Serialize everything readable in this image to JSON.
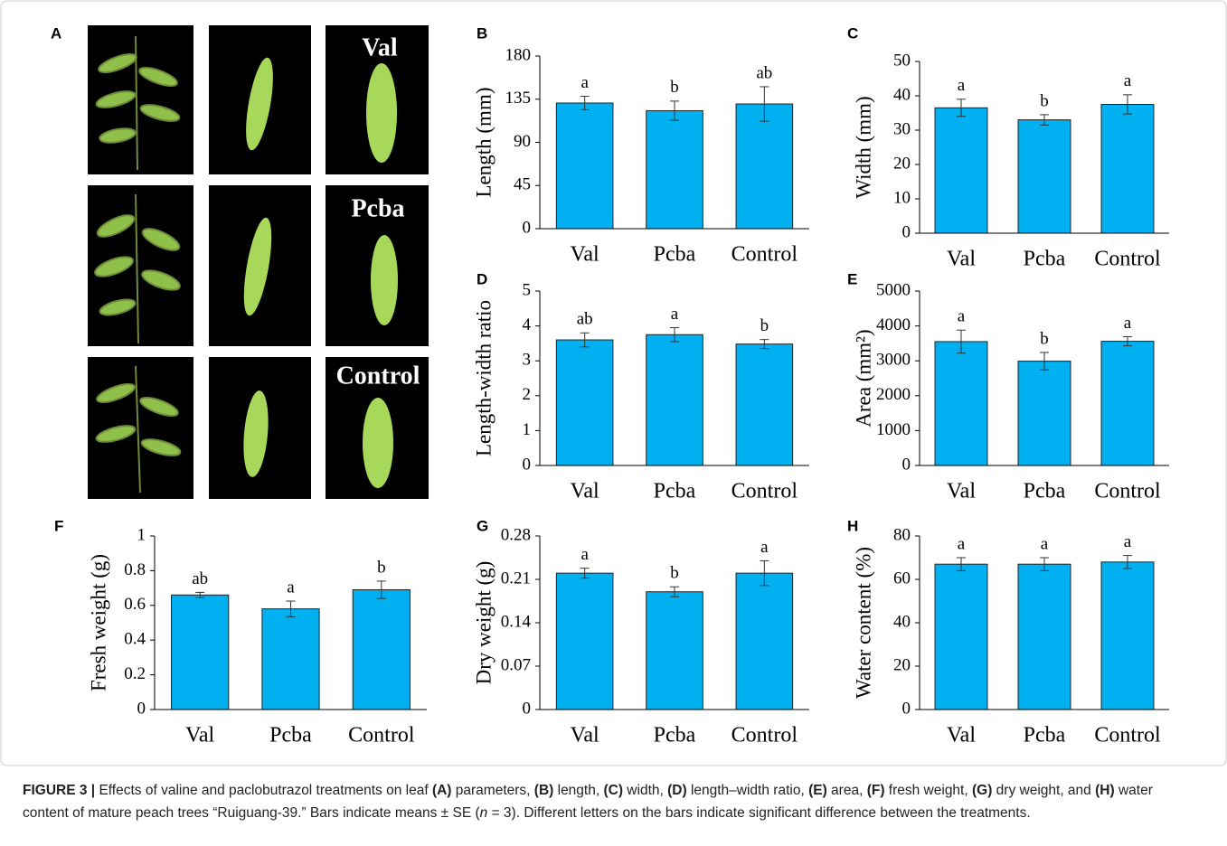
{
  "panel_a": {
    "label": "A",
    "treatments": [
      "Val",
      "Pcba",
      "Control"
    ]
  },
  "chart_data": [
    {
      "type": "bar",
      "panel": "B",
      "ylabel": "Length (mm)",
      "categories": [
        "Val",
        "Pcba",
        "Control"
      ],
      "values": [
        131,
        123,
        130
      ],
      "errors": [
        7,
        10,
        18
      ],
      "annotations": [
        "a",
        "b",
        "ab"
      ],
      "color": "#00b0f0",
      "ylim": [
        0,
        180
      ],
      "yticks": [
        0,
        45,
        90,
        135,
        180
      ]
    },
    {
      "type": "bar",
      "panel": "C",
      "ylabel": "Width (mm)",
      "categories": [
        "Val",
        "Pcba",
        "Control"
      ],
      "values": [
        36.5,
        33,
        37.5
      ],
      "errors": [
        2.5,
        1.5,
        2.8
      ],
      "annotations": [
        "a",
        "b",
        "a"
      ],
      "color": "#00b0f0",
      "ylim": [
        0,
        50
      ],
      "yticks": [
        0,
        10,
        20,
        30,
        40,
        50
      ]
    },
    {
      "type": "bar",
      "panel": "D",
      "ylabel": "Length-width ratio",
      "categories": [
        "Val",
        "Pcba",
        "Control"
      ],
      "values": [
        3.6,
        3.75,
        3.48
      ],
      "errors": [
        0.2,
        0.2,
        0.13
      ],
      "annotations": [
        "ab",
        "a",
        "b"
      ],
      "color": "#00b0f0",
      "ylim": [
        0,
        5
      ],
      "yticks": [
        0,
        1,
        2,
        3,
        4,
        5
      ]
    },
    {
      "type": "bar",
      "panel": "E",
      "ylabel": "Area (mm²)",
      "categories": [
        "Val",
        "Pcba",
        "Control"
      ],
      "values": [
        3550,
        2990,
        3560
      ],
      "errors": [
        330,
        250,
        130
      ],
      "annotations": [
        "a",
        "b",
        "a"
      ],
      "color": "#00b0f0",
      "ylim": [
        0,
        5000
      ],
      "yticks": [
        0,
        1000,
        2000,
        3000,
        4000,
        5000
      ]
    },
    {
      "type": "bar",
      "panel": "F",
      "ylabel": "Fresh weight (g)",
      "categories": [
        "Val",
        "Pcba",
        "Control"
      ],
      "values": [
        0.66,
        0.58,
        0.69
      ],
      "errors": [
        0.015,
        0.045,
        0.05
      ],
      "annotations": [
        "ab",
        "a",
        "b"
      ],
      "color": "#00b0f0",
      "ylim": [
        0,
        1
      ],
      "yticks": [
        0,
        0.2,
        0.4,
        0.6,
        0.8,
        1
      ]
    },
    {
      "type": "bar",
      "panel": "G",
      "ylabel": "Dry weight (g)",
      "categories": [
        "Val",
        "Pcba",
        "Control"
      ],
      "values": [
        0.22,
        0.19,
        0.22
      ],
      "errors": [
        0.008,
        0.008,
        0.02
      ],
      "annotations": [
        "a",
        "b",
        "a"
      ],
      "color": "#00b0f0",
      "ylim": [
        0,
        0.28
      ],
      "yticks": [
        0,
        0.07,
        0.14,
        0.21,
        0.28
      ]
    },
    {
      "type": "bar",
      "panel": "H",
      "ylabel": "Water content (%)",
      "categories": [
        "Val",
        "Pcba",
        "Control"
      ],
      "values": [
        67,
        67,
        68
      ],
      "errors": [
        3,
        3,
        3
      ],
      "annotations": [
        "a",
        "a",
        "a"
      ],
      "color": "#00b0f0",
      "ylim": [
        0,
        80
      ],
      "yticks": [
        0,
        20,
        40,
        60,
        80
      ]
    }
  ],
  "caption": [
    {
      "text": "FIGURE 3 |",
      "bold": true
    },
    {
      "text": " Effects of valine and paclobutrazol treatments on leaf "
    },
    {
      "text": "(A)",
      "bold": true
    },
    {
      "text": " parameters, "
    },
    {
      "text": "(B)",
      "bold": true
    },
    {
      "text": " length, "
    },
    {
      "text": "(C)",
      "bold": true
    },
    {
      "text": " width, "
    },
    {
      "text": "(D)",
      "bold": true
    },
    {
      "text": " length–width ratio, "
    },
    {
      "text": "(E)",
      "bold": true
    },
    {
      "text": " area, "
    },
    {
      "text": "(F)",
      "bold": true
    },
    {
      "text": " fresh weight, "
    },
    {
      "text": "(G)",
      "bold": true
    },
    {
      "text": " dry weight, and "
    },
    {
      "text": "(H)",
      "bold": true
    },
    {
      "text": " water content of mature peach trees “Ruiguang-39.” Bars indicate means ± SE ("
    },
    {
      "text": "n",
      "italic": true
    },
    {
      "text": " = 3). Different letters on the bars indicate significant difference between the treatments."
    }
  ]
}
